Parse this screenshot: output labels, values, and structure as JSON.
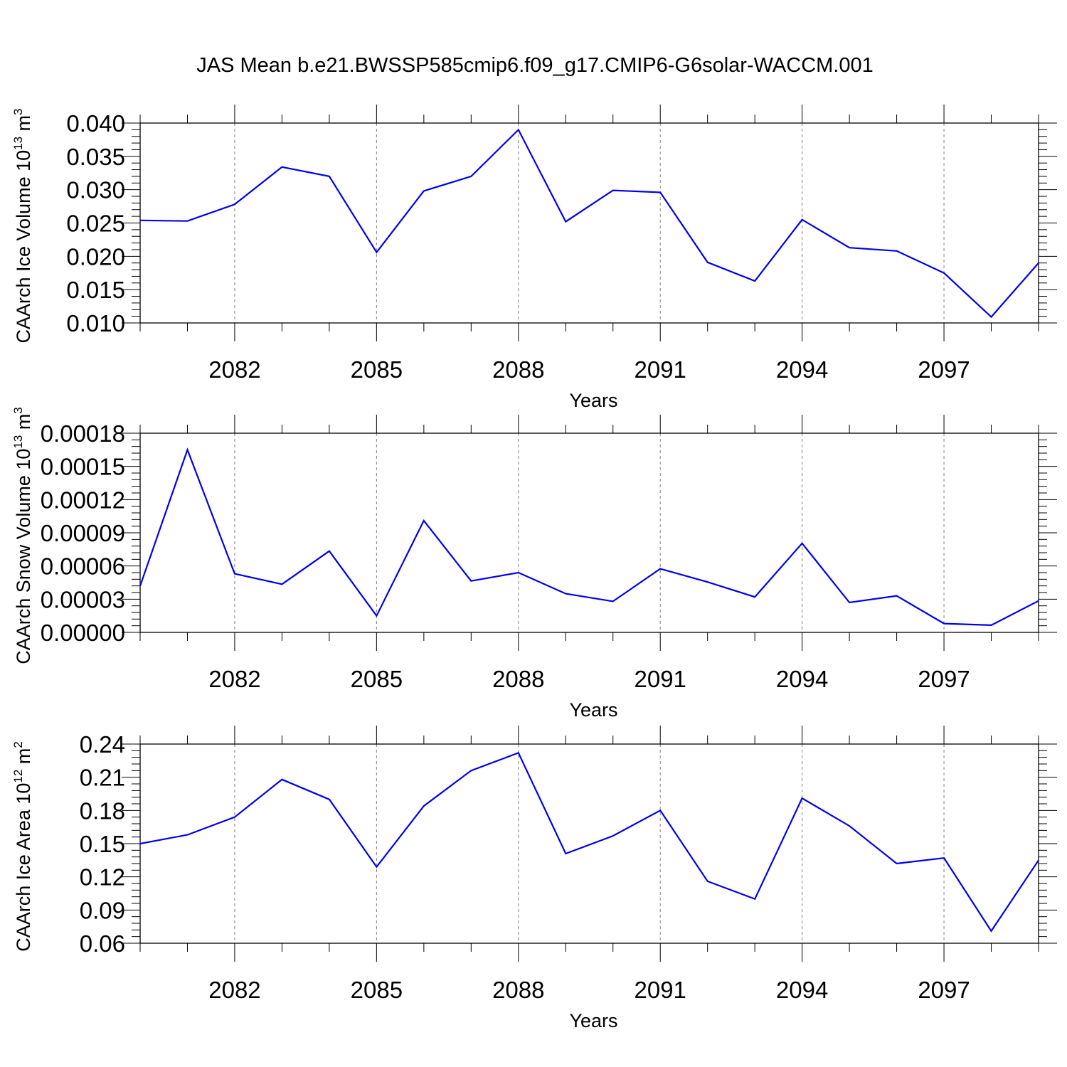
{
  "title": "JAS Mean b.e21.BWSSP585cmip6.f09_g17.CMIP6-G6solar-WACCM.001",
  "colors": {
    "line": "#0000ee",
    "axis": "#000000",
    "grid": "#808080",
    "background": "#ffffff"
  },
  "chart_data": [
    {
      "type": "line",
      "title": "JAS Mean b.e21.BWSSP585cmip6.f09_g17.CMIP6-G6solar-WACCM.001",
      "xlabel": "Years",
      "ylabel": {
        "prefix": "CAArch Ice Volume 10",
        "exp1": "13",
        "mid": " m",
        "exp2": "3"
      },
      "xlim": [
        2080,
        2099
      ],
      "x_ticks": [
        2082,
        2085,
        2088,
        2091,
        2094,
        2097
      ],
      "x_tick_labels": [
        "2082",
        "2085",
        "2088",
        "2091",
        "2094",
        "2097"
      ],
      "ylim": [
        0.01,
        0.04
      ],
      "y_ticks": [
        0.01,
        0.015,
        0.02,
        0.025,
        0.03,
        0.035,
        0.04
      ],
      "y_tick_labels": [
        "0.010",
        "0.015",
        "0.020",
        "0.025",
        "0.030",
        "0.035",
        "0.040"
      ],
      "x": [
        2080,
        2081,
        2082,
        2083,
        2084,
        2085,
        2086,
        2087,
        2088,
        2089,
        2090,
        2091,
        2092,
        2093,
        2094,
        2095,
        2096,
        2097,
        2098,
        2099
      ],
      "series": [
        {
          "name": "CAArch Ice Volume",
          "values": [
            0.0254,
            0.0253,
            0.0278,
            0.0334,
            0.032,
            0.0206,
            0.0298,
            0.032,
            0.039,
            0.0252,
            0.0299,
            0.0296,
            0.0191,
            0.0163,
            0.0255,
            0.0213,
            0.0208,
            0.0175,
            0.0109,
            0.019
          ]
        }
      ],
      "grid": "vertical dashed at major x ticks"
    },
    {
      "type": "line",
      "xlabel": "Years",
      "ylabel": {
        "prefix": "CAArch Snow Volume 10",
        "exp1": "13",
        "mid": " m",
        "exp2": "3"
      },
      "xlim": [
        2080,
        2099
      ],
      "x_ticks": [
        2082,
        2085,
        2088,
        2091,
        2094,
        2097
      ],
      "x_tick_labels": [
        "2082",
        "2085",
        "2088",
        "2091",
        "2094",
        "2097"
      ],
      "ylim": [
        0,
        0.00018
      ],
      "y_ticks": [
        0,
        3e-05,
        6e-05,
        9e-05,
        0.00012,
        0.00015,
        0.00018
      ],
      "y_tick_labels": [
        "0.00000",
        "0.00003",
        "0.00006",
        "0.00009",
        "0.00012",
        "0.00015",
        "0.00018"
      ],
      "x": [
        2080,
        2081,
        2082,
        2083,
        2084,
        2085,
        2086,
        2087,
        2088,
        2089,
        2090,
        2091,
        2092,
        2093,
        2094,
        2095,
        2096,
        2097,
        2098,
        2099
      ],
      "series": [
        {
          "name": "CAArch Snow Volume",
          "values": [
            4.2e-05,
            0.000165,
            5.3e-05,
            4.35e-05,
            7.35e-05,
            1.5e-05,
            0.000101,
            4.65e-05,
            5.4e-05,
            3.5e-05,
            2.8e-05,
            5.75e-05,
            4.55e-05,
            3.2e-05,
            8.05e-05,
            2.7e-05,
            3.3e-05,
            8e-06,
            6.5e-06,
            2.85e-05
          ]
        }
      ],
      "grid": "vertical dashed at major x ticks"
    },
    {
      "type": "line",
      "xlabel": "Years",
      "ylabel": {
        "prefix": "CAArch Ice Area 10",
        "exp1": "12",
        "mid": " m",
        "exp2": "2"
      },
      "xlim": [
        2080,
        2099
      ],
      "x_ticks": [
        2082,
        2085,
        2088,
        2091,
        2094,
        2097
      ],
      "x_tick_labels": [
        "2082",
        "2085",
        "2088",
        "2091",
        "2094",
        "2097"
      ],
      "ylim": [
        0.06,
        0.24
      ],
      "y_ticks": [
        0.06,
        0.09,
        0.12,
        0.15,
        0.18,
        0.21,
        0.24
      ],
      "y_tick_labels": [
        "0.06",
        "0.09",
        "0.12",
        "0.15",
        "0.18",
        "0.21",
        "0.24"
      ],
      "x": [
        2080,
        2081,
        2082,
        2083,
        2084,
        2085,
        2086,
        2087,
        2088,
        2089,
        2090,
        2091,
        2092,
        2093,
        2094,
        2095,
        2096,
        2097,
        2098,
        2099
      ],
      "series": [
        {
          "name": "CAArch Ice Area",
          "values": [
            0.15,
            0.158,
            0.174,
            0.208,
            0.19,
            0.129,
            0.184,
            0.216,
            0.232,
            0.141,
            0.157,
            0.18,
            0.116,
            0.1,
            0.191,
            0.166,
            0.132,
            0.137,
            0.071,
            0.135
          ]
        }
      ],
      "grid": "vertical dashed at major x ticks"
    }
  ]
}
